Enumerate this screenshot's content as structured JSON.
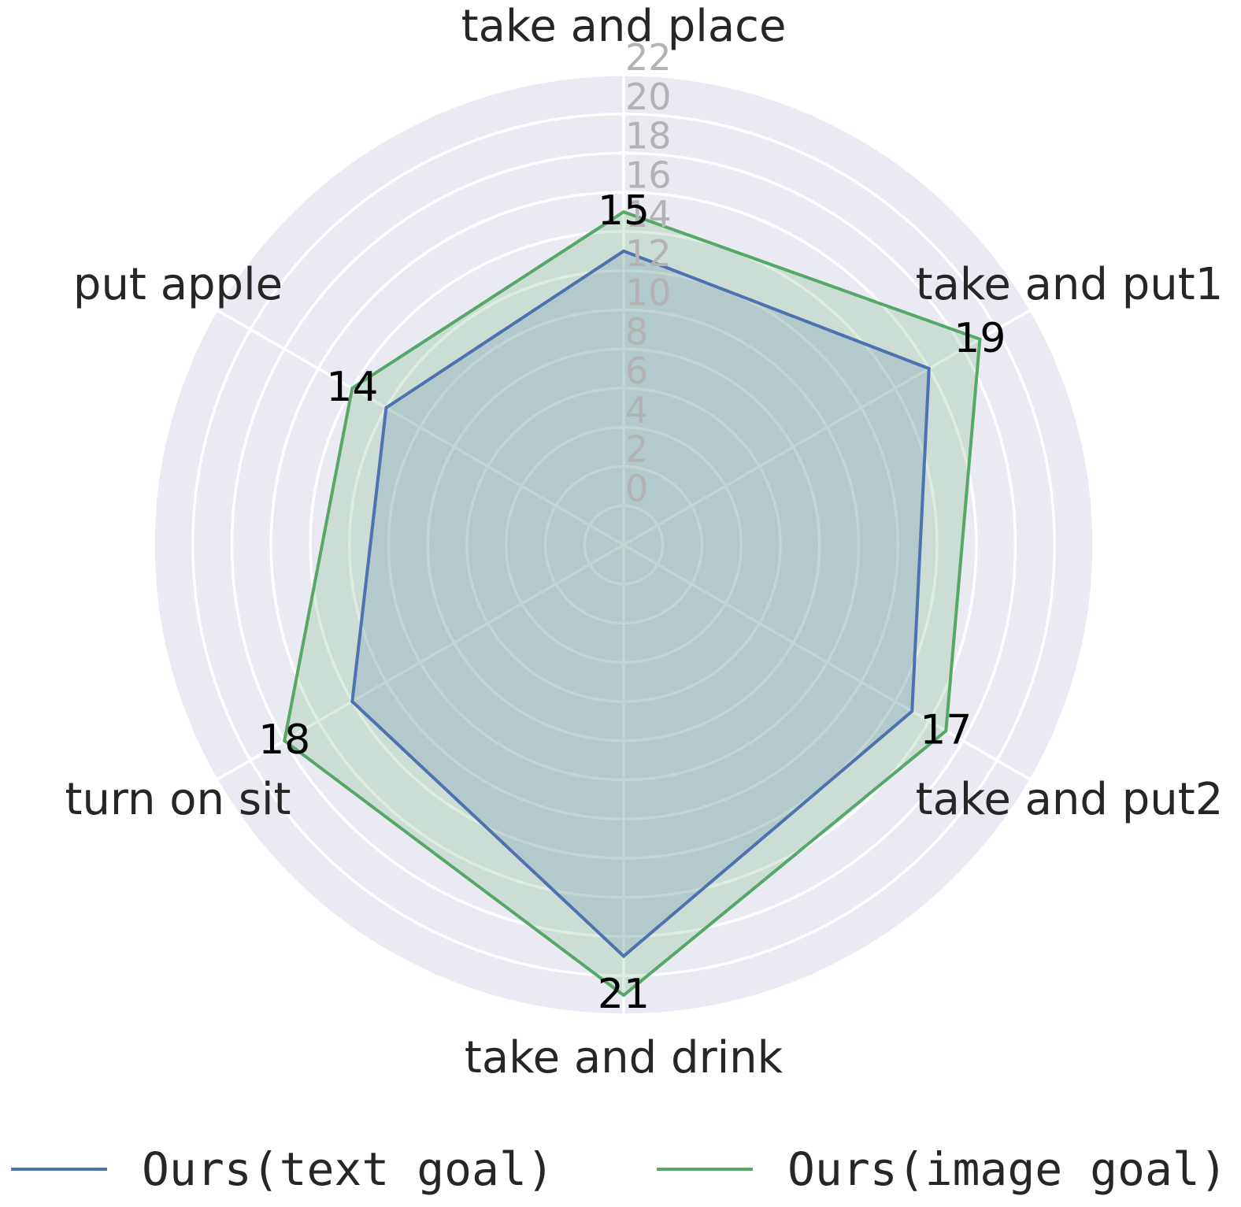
{
  "chart_data": {
    "type": "radar",
    "categories": [
      "take and place",
      "take and put1",
      "take and put2",
      "take and drink",
      "turn on sit",
      "put apple"
    ],
    "series": [
      {
        "name": "Ours(text goal)",
        "values": [
          13,
          16,
          15,
          19,
          14,
          12
        ],
        "color": "#4c72b0"
      },
      {
        "name": "Ours(image goal)",
        "values": [
          15,
          19,
          17,
          21,
          18,
          14
        ],
        "color": "#55a868"
      }
    ],
    "data_labels": [
      "15",
      "19",
      "17",
      "21",
      "18",
      "14"
    ],
    "radial_ticks": [
      "0",
      "2",
      "4",
      "6",
      "8",
      "10",
      "12",
      "14",
      "16",
      "18",
      "20",
      "22"
    ],
    "rlim": [
      -2,
      22
    ],
    "grid": true,
    "legend_placement": "bottom",
    "colors": {
      "panel_background": "#eaeaf2",
      "grid": "#ffffff",
      "tick_text": "#b3b3b3"
    }
  }
}
